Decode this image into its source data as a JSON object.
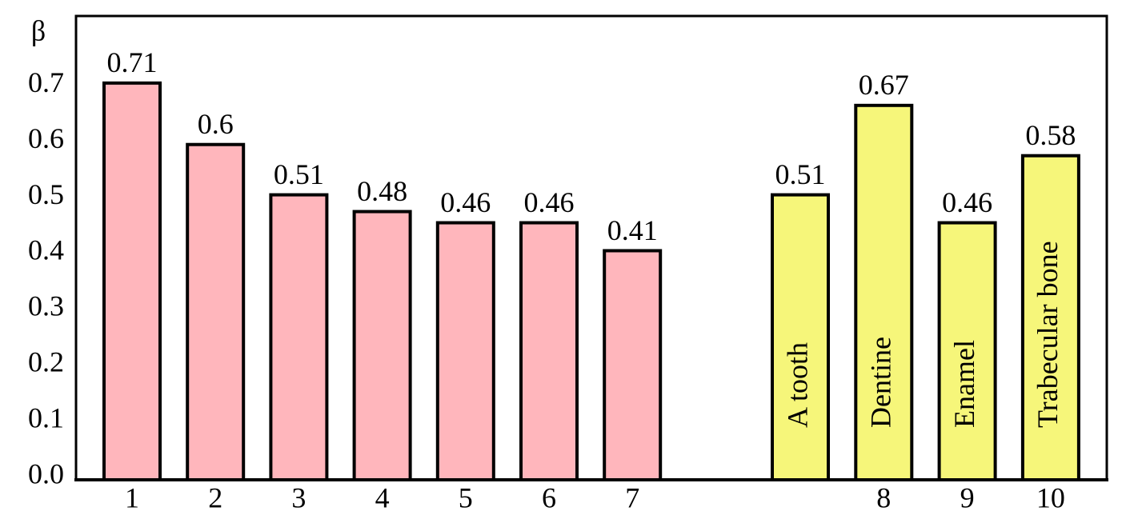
{
  "chart_data": {
    "type": "bar",
    "y_label": "β",
    "categories": [
      "1",
      "2",
      "3",
      "4",
      "5",
      "6",
      "7",
      null,
      "8",
      "9",
      "10"
    ],
    "values": [
      0.71,
      0.6,
      0.51,
      0.48,
      0.46,
      0.46,
      0.41,
      0.51,
      0.67,
      0.46,
      0.58
    ],
    "bar_labels": [
      null,
      null,
      null,
      null,
      null,
      null,
      null,
      "A tooth",
      "Dentine",
      "Enamel",
      "Trabecular bone"
    ],
    "colors": [
      "#ffb6bc",
      "#ffb6bc",
      "#ffb6bc",
      "#ffb6bc",
      "#ffb6bc",
      "#ffb6bc",
      "#ffb6bc",
      "#f6f67a",
      "#f6f67a",
      "#f6f67a",
      "#f6f67a"
    ],
    "ylim": [
      0,
      0.83
    ],
    "yticks": [
      {
        "value": 0,
        "label": "0.0"
      },
      0.1,
      0.2,
      0.3,
      0.4,
      0.5,
      0.6,
      0.7
    ]
  }
}
